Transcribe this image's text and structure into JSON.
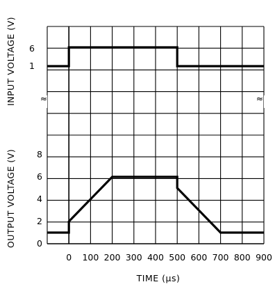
{
  "chart_data": [
    {
      "type": "line",
      "panel": "input",
      "ylabel": "INPUT VOLTAGE (V)",
      "yticks": [
        "1",
        "6"
      ],
      "series": [
        {
          "x": [
            -100,
            0,
            0,
            500,
            500,
            900
          ],
          "y": [
            1,
            1,
            6,
            6,
            1,
            1
          ]
        }
      ]
    },
    {
      "type": "line",
      "panel": "output",
      "ylabel": "OUTPUT VOLTAGE (V)",
      "ylim": [
        0,
        8
      ],
      "yticks": [
        "0",
        "2",
        "4",
        "6",
        "8"
      ],
      "series": [
        {
          "x": [
            -100,
            0,
            0,
            200,
            500,
            500,
            700,
            900
          ],
          "y": [
            1,
            1,
            2,
            6,
            6,
            5,
            1,
            1
          ]
        }
      ]
    }
  ],
  "xaxis": {
    "label": "TIME (µs)",
    "ticks": [
      "0",
      "100",
      "200",
      "300",
      "400",
      "500",
      "600",
      "700",
      "800",
      "900"
    ]
  },
  "break_marks": [
    "≈",
    "≈"
  ]
}
